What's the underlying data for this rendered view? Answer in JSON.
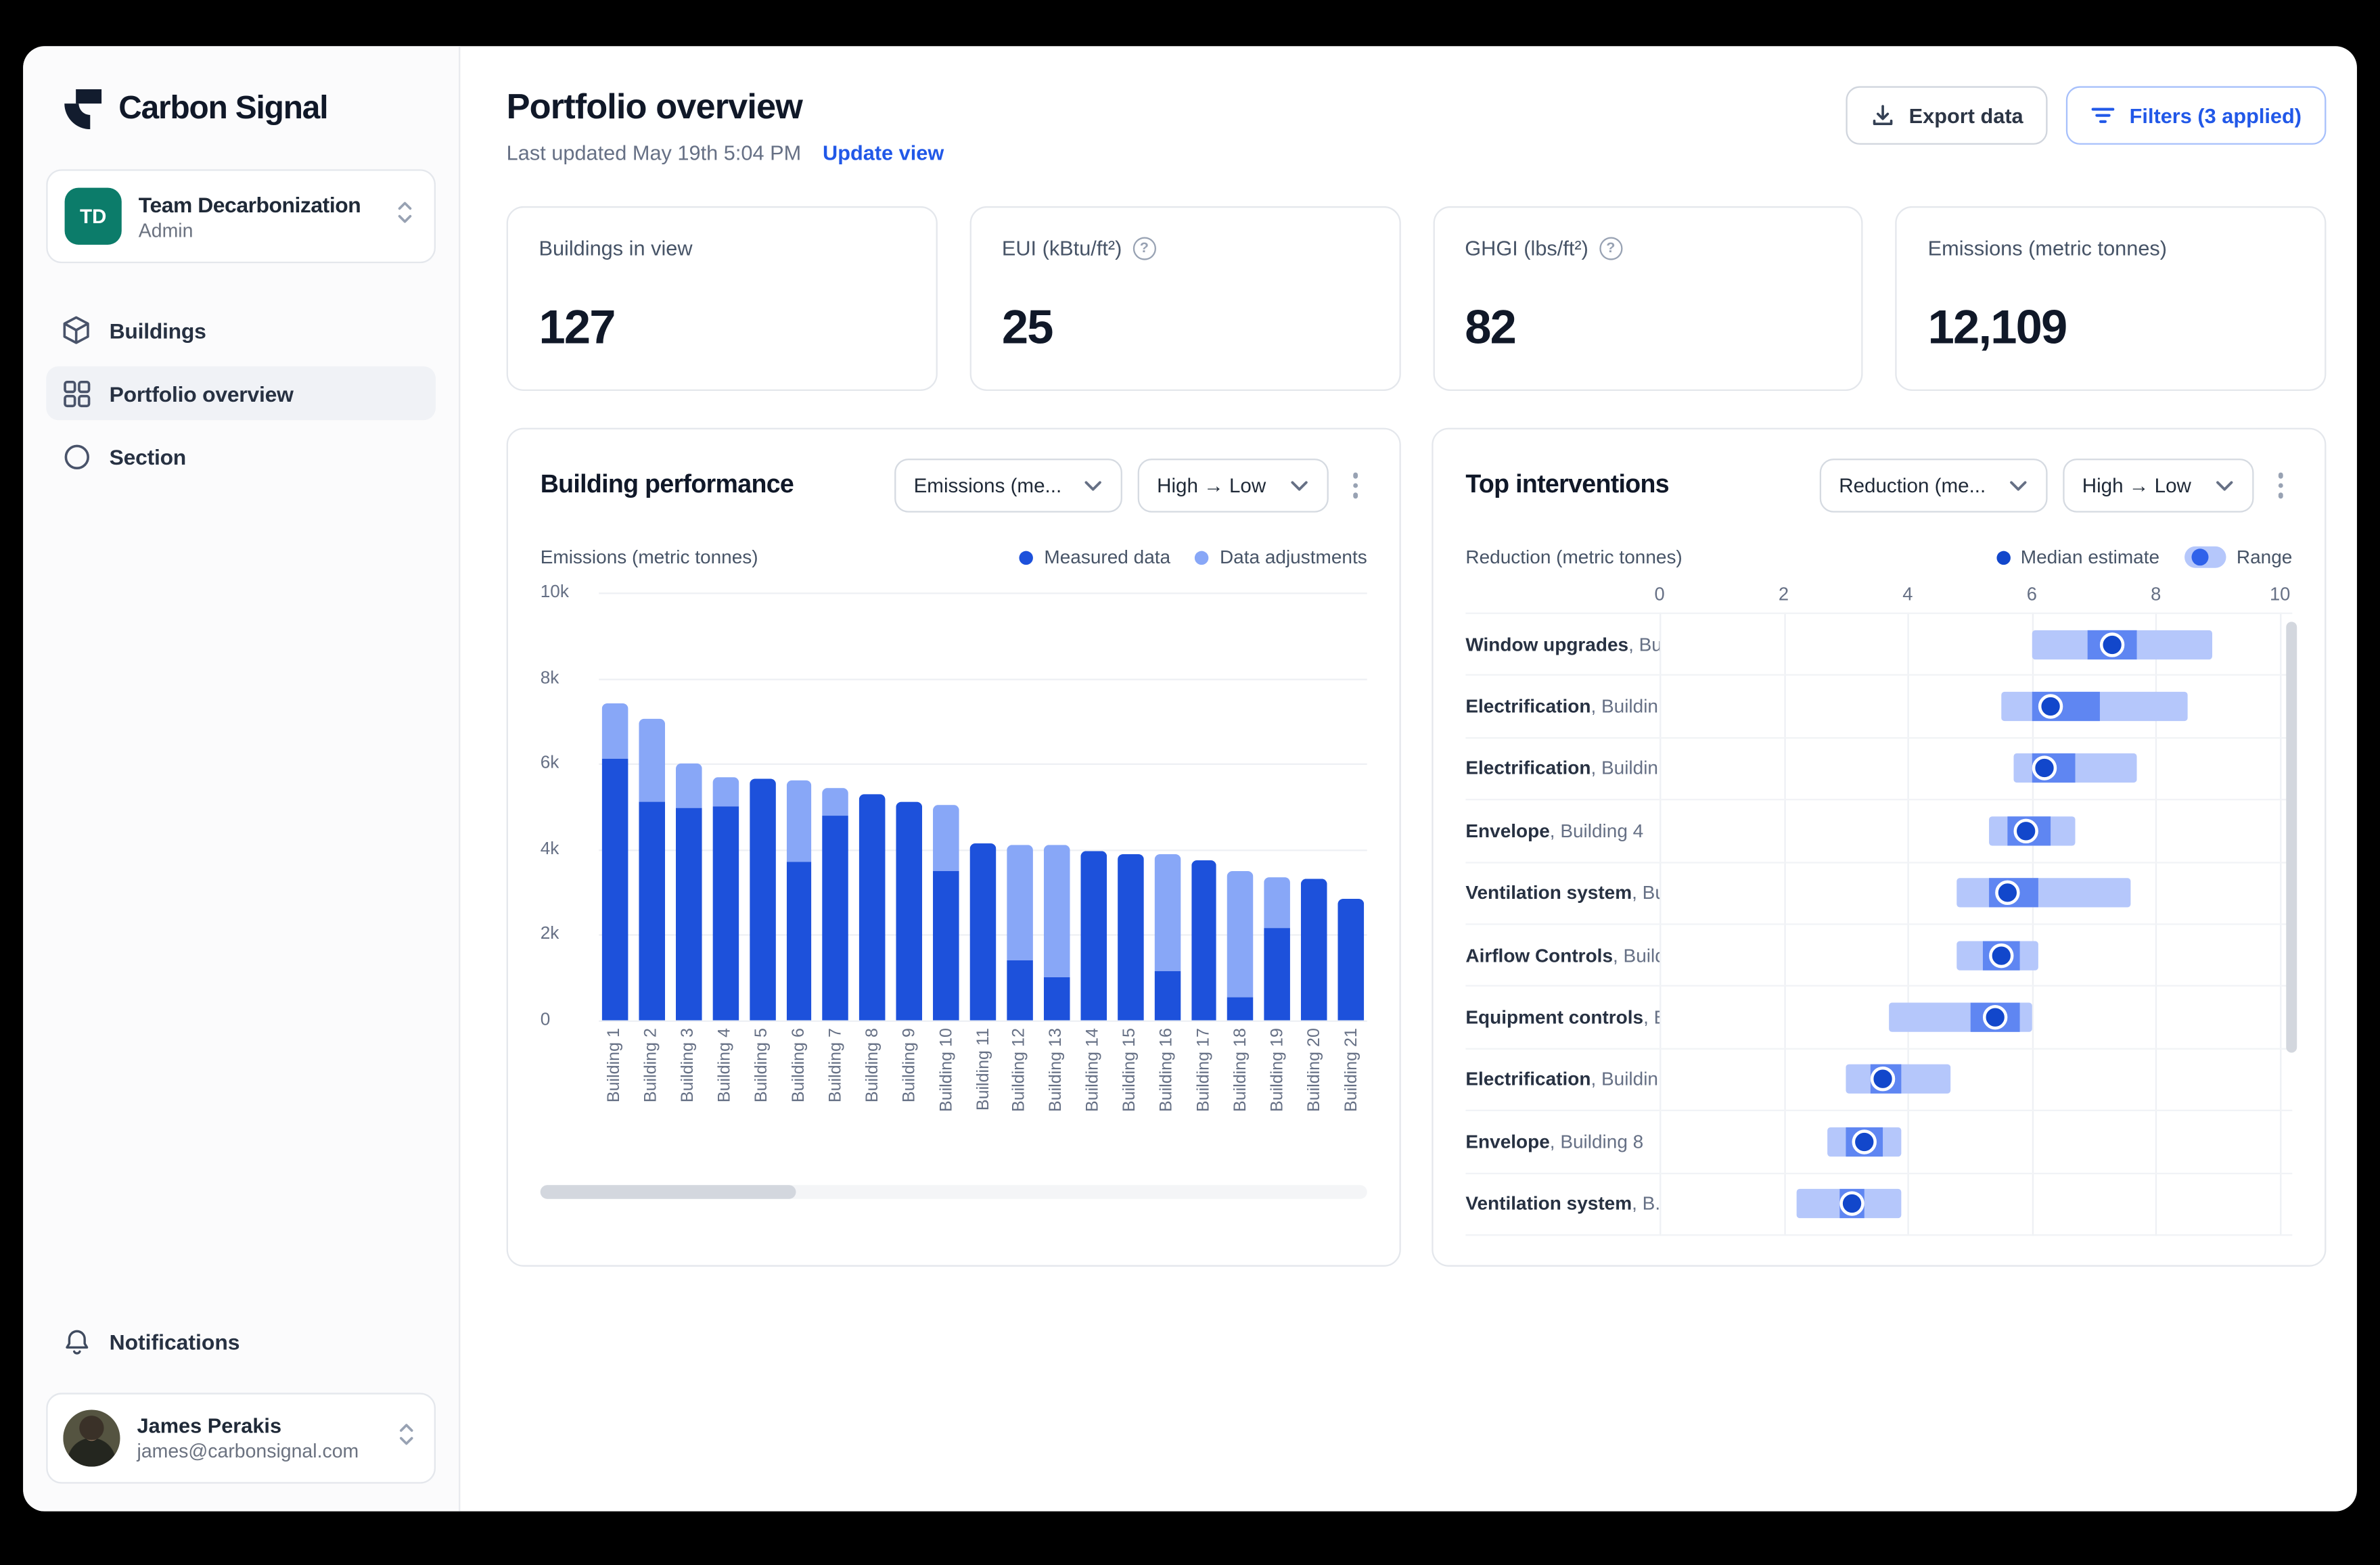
{
  "app": {
    "brand": "Carbon Signal"
  },
  "sidebar": {
    "team": {
      "initials": "TD",
      "name": "Team Decarbonization",
      "role": "Admin"
    },
    "nav": [
      {
        "label": "Buildings",
        "icon": "cube-icon",
        "active": false
      },
      {
        "label": "Portfolio overview",
        "icon": "grid-icon",
        "active": true
      },
      {
        "label": "Section",
        "icon": "circle-icon",
        "active": false
      }
    ],
    "notifications_label": "Notifications",
    "user": {
      "name": "James Perakis",
      "email": "james@carbonsignal.com"
    }
  },
  "header": {
    "title": "Portfolio overview",
    "last_updated": "Last updated May 19th 5:04 PM",
    "update_view_label": "Update view",
    "export_button": "Export data",
    "filters_button": "Filters (3 applied)"
  },
  "stat_cards": [
    {
      "label": "Buildings in view",
      "value": "127",
      "has_help": false
    },
    {
      "label": "EUI (kBtu/ft²)",
      "value": "25",
      "has_help": true
    },
    {
      "label": "GHGI (lbs/ft²)",
      "value": "82",
      "has_help": true
    },
    {
      "label": "Emissions (metric tonnes)",
      "value": "12,109",
      "has_help": false
    }
  ],
  "colors": {
    "accent_blue": "#2158e8",
    "measured": "#1d51db",
    "adjustments": "#88a7f7",
    "range_light": "#b5c7fb",
    "range_inner": "#5f86f2",
    "median_dot": "#1247cb",
    "team_avatar": "#0c7c6a"
  },
  "chart_data": [
    {
      "type": "bar",
      "title": "Building performance",
      "metric_dropdown": "Emissions (me...",
      "sort_dropdown": "High → Low",
      "axis_label": "Emissions (metric tonnes)",
      "legend": [
        {
          "label": "Measured data"
        },
        {
          "label": "Data adjustments"
        }
      ],
      "categories": [
        "Building 1",
        "Building 2",
        "Building 3",
        "Building 4",
        "Building 5",
        "Building 6",
        "Building 7",
        "Building 8",
        "Building 9",
        "Building 10",
        "Building 11",
        "Building 12",
        "Building 13",
        "Building 14",
        "Building 15",
        "Building 16",
        "Building 17",
        "Building 18",
        "Building 19",
        "Building 20",
        "Building 21"
      ],
      "series": [
        {
          "name": "Measured data",
          "values": [
            6100,
            5100,
            4950,
            5000,
            5650,
            3700,
            4800,
            5300,
            5100,
            3500,
            4150,
            1400,
            1000,
            3950,
            3900,
            1150,
            3750,
            550,
            2150,
            3300,
            2850
          ]
        },
        {
          "name": "Data adjustments",
          "values": [
            1300,
            1950,
            1050,
            700,
            0,
            1900,
            650,
            0,
            0,
            1550,
            0,
            2700,
            3100,
            0,
            0,
            2750,
            0,
            2950,
            1200,
            0,
            0
          ]
        }
      ],
      "totals": [
        7400,
        7050,
        6000,
        5700,
        5650,
        5600,
        5450,
        5300,
        5100,
        5050,
        4150,
        4100,
        4100,
        3950,
        3900,
        3900,
        3750,
        3500,
        3350,
        3300,
        2850
      ],
      "ylim": [
        0,
        10000
      ],
      "yticks": [
        "0",
        "2k",
        "4k",
        "6k",
        "8k",
        "10k"
      ],
      "grid": true,
      "legend_position": "top-right"
    },
    {
      "type": "range-dot",
      "title": "Top interventions",
      "metric_dropdown": "Reduction (me...",
      "sort_dropdown": "High → Low",
      "axis_label": "Reduction (metric tonnes)",
      "legend": [
        {
          "label": "Median estimate"
        },
        {
          "label": "Range"
        }
      ],
      "xlim": [
        0,
        10
      ],
      "xticks": [
        0,
        2,
        4,
        6,
        8,
        10
      ],
      "grid": true,
      "rows": [
        {
          "name": "Window upgrades",
          "detail": ", Bui...",
          "min": 6.0,
          "inner_min": 6.9,
          "median": 7.3,
          "inner_max": 7.7,
          "max": 8.9
        },
        {
          "name": "Electrification",
          "detail": ", Buildin...",
          "min": 5.5,
          "inner_min": 6.0,
          "median": 6.3,
          "inner_max": 7.1,
          "max": 8.5
        },
        {
          "name": "Electrification",
          "detail": ", Buildin...",
          "min": 5.7,
          "inner_min": 6.0,
          "median": 6.2,
          "inner_max": 6.7,
          "max": 7.7
        },
        {
          "name": "Envelope",
          "detail": ", Building 4",
          "min": 5.3,
          "inner_min": 5.6,
          "median": 5.9,
          "inner_max": 6.3,
          "max": 6.7
        },
        {
          "name": "Ventilation system",
          "detail": ", Bu...",
          "min": 4.8,
          "inner_min": 5.3,
          "median": 5.6,
          "inner_max": 6.1,
          "max": 7.6
        },
        {
          "name": "Airflow Controls",
          "detail": ", Build...",
          "min": 4.8,
          "inner_min": 5.2,
          "median": 5.5,
          "inner_max": 5.8,
          "max": 6.1
        },
        {
          "name": "Equipment controls",
          "detail": ", B...",
          "min": 3.7,
          "inner_min": 5.0,
          "median": 5.4,
          "inner_max": 5.8,
          "max": 6.0
        },
        {
          "name": "Electrification",
          "detail": ", Buildin...",
          "min": 3.0,
          "inner_min": 3.4,
          "median": 3.6,
          "inner_max": 3.9,
          "max": 4.7
        },
        {
          "name": "Envelope",
          "detail": ", Building 8",
          "min": 2.7,
          "inner_min": 3.0,
          "median": 3.3,
          "inner_max": 3.6,
          "max": 3.9
        },
        {
          "name": "Ventilation system",
          "detail": ", B...",
          "min": 2.2,
          "inner_min": 2.9,
          "median": 3.1,
          "inner_max": 3.3,
          "max": 3.9
        }
      ]
    }
  ]
}
